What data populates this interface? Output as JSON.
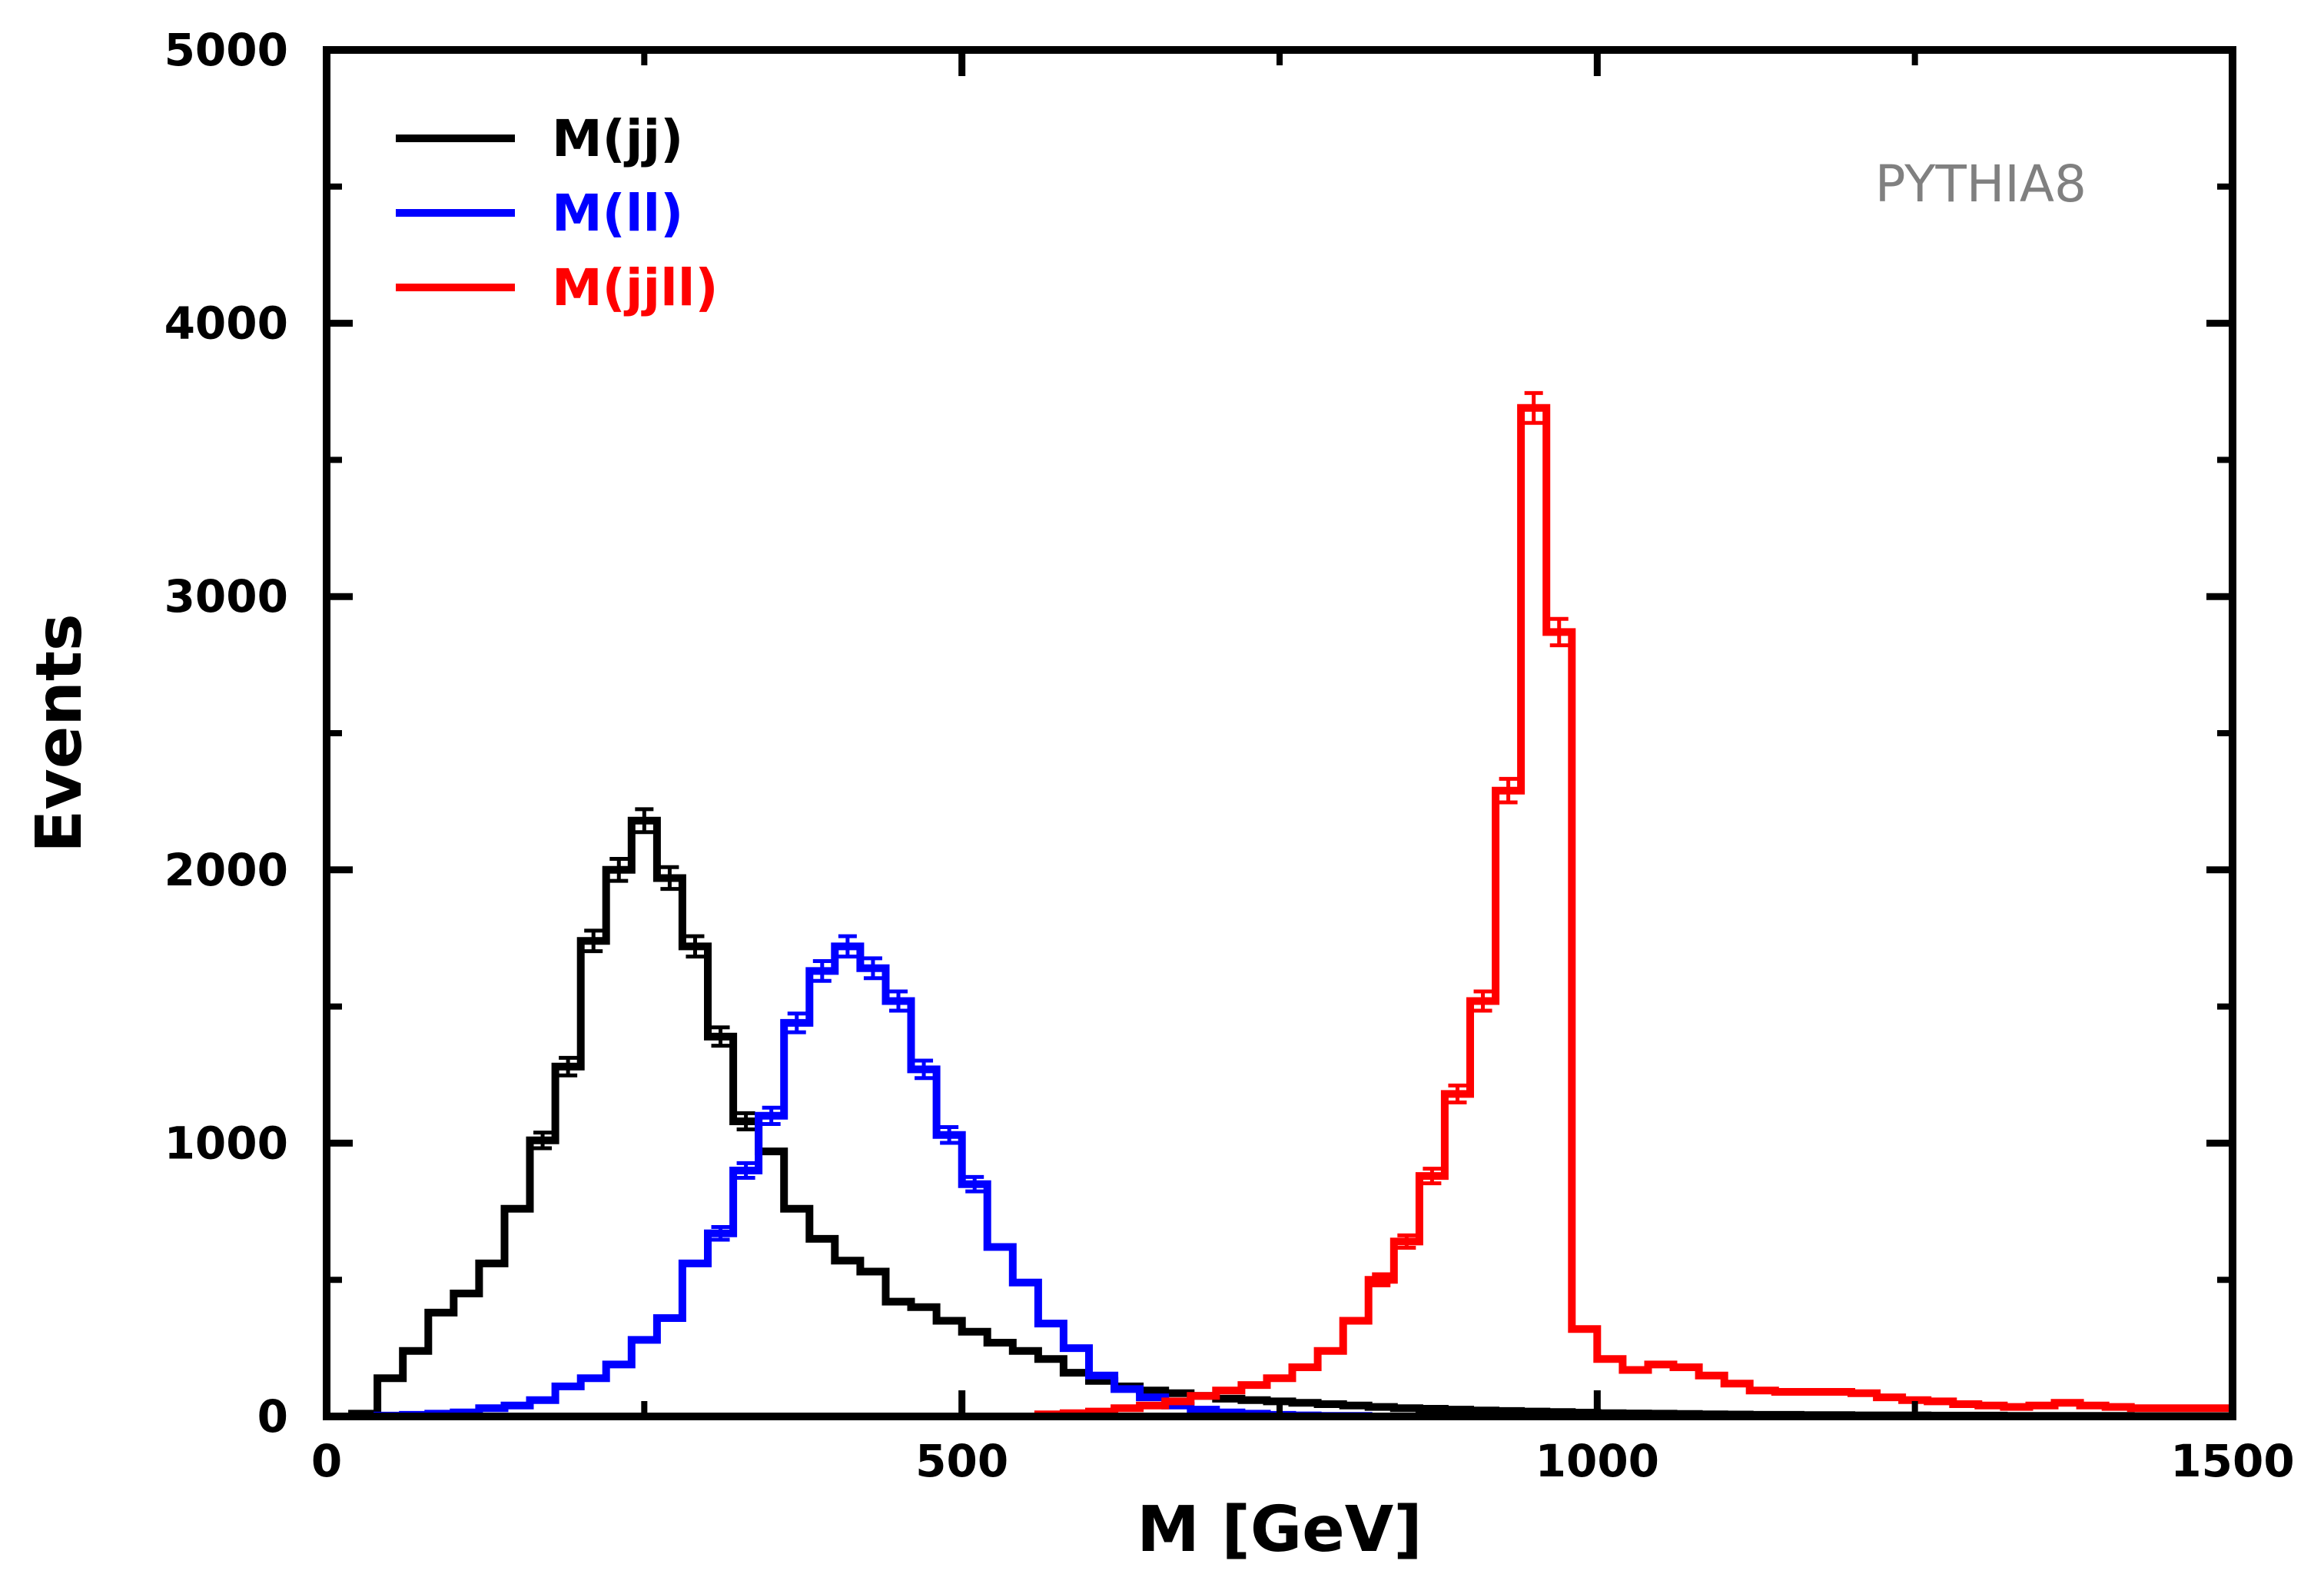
{
  "chart_data": {
    "type": "line",
    "xlabel": "M [GeV]",
    "ylabel": "Events",
    "xlim": [
      0,
      1500
    ],
    "ylim": [
      0,
      5000
    ],
    "x_ticks": [
      0,
      500,
      1000,
      1500
    ],
    "y_ticks": [
      0,
      1000,
      2000,
      3000,
      4000,
      5000
    ],
    "grid": false,
    "legend_position": "top-left",
    "annotation": "PYTHIA8",
    "bin_width": 20,
    "series": [
      {
        "name": "M(jj)",
        "color": "#000000",
        "bins": [
          [
            20,
            10
          ],
          [
            40,
            140
          ],
          [
            60,
            240
          ],
          [
            80,
            380
          ],
          [
            100,
            450
          ],
          [
            120,
            560
          ],
          [
            140,
            760
          ],
          [
            160,
            1010
          ],
          [
            180,
            1280
          ],
          [
            200,
            1740
          ],
          [
            220,
            2000
          ],
          [
            240,
            2180
          ],
          [
            260,
            1970
          ],
          [
            280,
            1720
          ],
          [
            300,
            1390
          ],
          [
            320,
            1080
          ],
          [
            340,
            970
          ],
          [
            360,
            760
          ],
          [
            380,
            650
          ],
          [
            400,
            570
          ],
          [
            420,
            530
          ],
          [
            440,
            420
          ],
          [
            460,
            400
          ],
          [
            480,
            350
          ],
          [
            500,
            310
          ],
          [
            520,
            270
          ],
          [
            540,
            240
          ],
          [
            560,
            210
          ],
          [
            580,
            160
          ],
          [
            600,
            130
          ],
          [
            620,
            110
          ],
          [
            640,
            95
          ],
          [
            660,
            85
          ],
          [
            680,
            75
          ],
          [
            700,
            65
          ],
          [
            720,
            60
          ],
          [
            740,
            55
          ],
          [
            760,
            50
          ],
          [
            780,
            45
          ],
          [
            800,
            40
          ],
          [
            820,
            35
          ],
          [
            840,
            30
          ],
          [
            860,
            28
          ],
          [
            880,
            25
          ],
          [
            900,
            22
          ],
          [
            920,
            20
          ],
          [
            940,
            18
          ],
          [
            960,
            16
          ],
          [
            980,
            14
          ],
          [
            1000,
            12
          ],
          [
            1020,
            11
          ],
          [
            1040,
            10
          ],
          [
            1060,
            9
          ],
          [
            1080,
            8
          ],
          [
            1100,
            7
          ],
          [
            1120,
            6
          ],
          [
            1140,
            6
          ],
          [
            1160,
            5
          ],
          [
            1180,
            5
          ],
          [
            1200,
            4
          ],
          [
            1220,
            4
          ],
          [
            1240,
            4
          ],
          [
            1260,
            3
          ],
          [
            1280,
            3
          ],
          [
            1300,
            3
          ],
          [
            1320,
            2
          ],
          [
            1340,
            2
          ],
          [
            1360,
            2
          ],
          [
            1380,
            2
          ],
          [
            1400,
            2
          ],
          [
            1420,
            1
          ],
          [
            1440,
            1
          ],
          [
            1460,
            1
          ],
          [
            1480,
            1
          ]
        ]
      },
      {
        "name": "M(ll)",
        "color": "#0000ff",
        "bins": [
          [
            40,
            3
          ],
          [
            60,
            6
          ],
          [
            80,
            10
          ],
          [
            100,
            15
          ],
          [
            120,
            30
          ],
          [
            140,
            40
          ],
          [
            160,
            60
          ],
          [
            180,
            110
          ],
          [
            200,
            140
          ],
          [
            220,
            190
          ],
          [
            240,
            280
          ],
          [
            260,
            360
          ],
          [
            280,
            560
          ],
          [
            300,
            670
          ],
          [
            320,
            900
          ],
          [
            340,
            1100
          ],
          [
            360,
            1440
          ],
          [
            380,
            1630
          ],
          [
            400,
            1720
          ],
          [
            420,
            1640
          ],
          [
            440,
            1520
          ],
          [
            460,
            1270
          ],
          [
            480,
            1030
          ],
          [
            500,
            850
          ],
          [
            520,
            620
          ],
          [
            540,
            490
          ],
          [
            560,
            340
          ],
          [
            580,
            250
          ],
          [
            600,
            150
          ],
          [
            620,
            100
          ],
          [
            640,
            70
          ],
          [
            660,
            40
          ],
          [
            680,
            25
          ],
          [
            700,
            15
          ],
          [
            720,
            10
          ],
          [
            740,
            6
          ],
          [
            760,
            4
          ],
          [
            780,
            2
          ],
          [
            800,
            2
          ]
        ]
      },
      {
        "name": "M(jjll)",
        "color": "#ff0000",
        "bins": [
          [
            560,
            8
          ],
          [
            580,
            12
          ],
          [
            600,
            18
          ],
          [
            620,
            30
          ],
          [
            640,
            40
          ],
          [
            660,
            55
          ],
          [
            680,
            75
          ],
          [
            700,
            95
          ],
          [
            720,
            115
          ],
          [
            740,
            140
          ],
          [
            760,
            180
          ],
          [
            780,
            240
          ],
          [
            800,
            350
          ],
          [
            820,
            500
          ],
          [
            840,
            640
          ],
          [
            860,
            880
          ],
          [
            880,
            1180
          ],
          [
            900,
            1520
          ],
          [
            920,
            2290
          ],
          [
            940,
            3690
          ],
          [
            960,
            2870
          ],
          [
            980,
            320
          ],
          [
            1000,
            210
          ],
          [
            1020,
            170
          ],
          [
            1040,
            190
          ],
          [
            1060,
            180
          ],
          [
            1080,
            150
          ],
          [
            1100,
            120
          ],
          [
            1120,
            95
          ],
          [
            1140,
            90
          ],
          [
            1160,
            90
          ],
          [
            1180,
            90
          ],
          [
            1200,
            85
          ],
          [
            1220,
            70
          ],
          [
            1240,
            60
          ],
          [
            1260,
            55
          ],
          [
            1280,
            45
          ],
          [
            1300,
            40
          ],
          [
            1320,
            35
          ],
          [
            1340,
            40
          ],
          [
            1360,
            50
          ],
          [
            1380,
            40
          ],
          [
            1400,
            35
          ],
          [
            1420,
            30
          ],
          [
            1440,
            30
          ],
          [
            1460,
            30
          ],
          [
            1480,
            30
          ]
        ]
      }
    ],
    "error_bar_bins": {
      "M(jj)": [
        160,
        1010,
        180,
        1280,
        200,
        1740,
        220,
        2000,
        240,
        2180,
        260,
        1970,
        280,
        1720,
        300,
        1390,
        320,
        1080
      ],
      "M(ll)": [
        300,
        670,
        320,
        900,
        340,
        1100,
        360,
        1440,
        380,
        1630,
        400,
        1720,
        420,
        1640,
        440,
        1520,
        460,
        1270,
        480,
        1030,
        500,
        850
      ],
      "M(jjll)": [
        820,
        500,
        840,
        640,
        860,
        880,
        880,
        1180,
        900,
        1520,
        920,
        2290,
        940,
        3690,
        960,
        2870
      ]
    }
  }
}
